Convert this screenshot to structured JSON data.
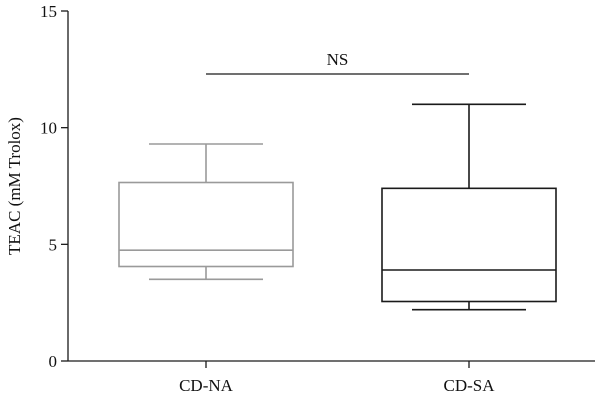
{
  "chart_data": {
    "type": "box",
    "categories": [
      "CD-NA",
      "CD-SA"
    ],
    "series": [
      {
        "whisker_low": 3.5,
        "q1": 4.05,
        "median": 4.75,
        "q3": 7.65,
        "whisker_high": 9.3,
        "color": "#9a9a9a"
      },
      {
        "whisker_low": 2.2,
        "q1": 2.55,
        "median": 3.9,
        "q3": 7.4,
        "whisker_high": 11.0,
        "color": "#1a1a1a"
      }
    ],
    "ylabel": "TEAC (mM Trolox)",
    "xlabel": "",
    "ylim": [
      0,
      15
    ],
    "yticks": [
      0,
      5,
      10,
      15
    ],
    "annotation": {
      "text": "NS",
      "y": 12.3
    },
    "grid": false
  }
}
